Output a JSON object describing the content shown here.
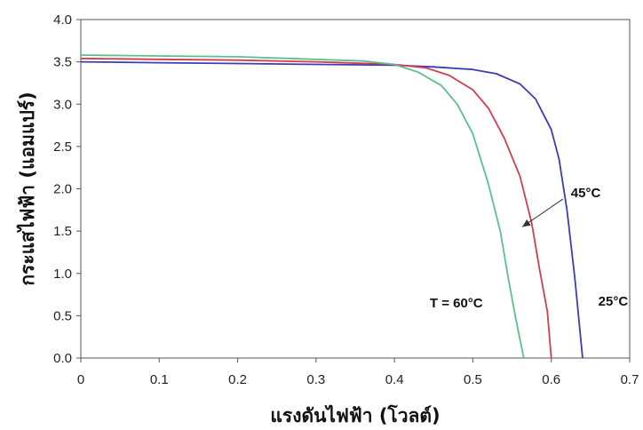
{
  "chart_data": {
    "type": "line",
    "xlabel": "แรงดันไฟฟ้า (โวลต์)",
    "ylabel": "กระแสไฟฟ้า (แอมแปร์)",
    "xlim": [
      0,
      0.7
    ],
    "ylim": [
      0,
      4.0
    ],
    "xticks": [
      "0",
      "0.1",
      "0.2",
      "0.3",
      "0.4",
      "0.5",
      "0.6",
      "0.7"
    ],
    "yticks": [
      "0.0",
      "0.5",
      "1.0",
      "1.5",
      "2.0",
      "2.5",
      "3.0",
      "3.5",
      "4.0"
    ],
    "grid": false,
    "series": [
      {
        "color": "#3c3cb4",
        "points": [
          [
            0,
            3.5
          ],
          [
            0.1,
            3.49
          ],
          [
            0.2,
            3.48
          ],
          [
            0.3,
            3.47
          ],
          [
            0.4,
            3.46
          ],
          [
            0.45,
            3.44
          ],
          [
            0.5,
            3.41
          ],
          [
            0.53,
            3.36
          ],
          [
            0.56,
            3.24
          ],
          [
            0.58,
            3.06
          ],
          [
            0.6,
            2.7
          ],
          [
            0.61,
            2.35
          ],
          [
            0.62,
            1.75
          ],
          [
            0.63,
            0.95
          ],
          [
            0.64,
            0.0
          ]
        ]
      },
      {
        "color": "#d23c50",
        "points": [
          [
            0,
            3.54
          ],
          [
            0.1,
            3.53
          ],
          [
            0.2,
            3.52
          ],
          [
            0.3,
            3.5
          ],
          [
            0.4,
            3.47
          ],
          [
            0.44,
            3.43
          ],
          [
            0.47,
            3.34
          ],
          [
            0.5,
            3.17
          ],
          [
            0.52,
            2.95
          ],
          [
            0.54,
            2.6
          ],
          [
            0.56,
            2.15
          ],
          [
            0.575,
            1.6
          ],
          [
            0.585,
            1.05
          ],
          [
            0.595,
            0.55
          ],
          [
            0.6,
            0.0
          ]
        ]
      },
      {
        "color": "#5cc08c",
        "points": [
          [
            0,
            3.58
          ],
          [
            0.1,
            3.57
          ],
          [
            0.2,
            3.56
          ],
          [
            0.3,
            3.53
          ],
          [
            0.36,
            3.51
          ],
          [
            0.4,
            3.47
          ],
          [
            0.43,
            3.38
          ],
          [
            0.46,
            3.22
          ],
          [
            0.48,
            3.0
          ],
          [
            0.5,
            2.65
          ],
          [
            0.52,
            2.05
          ],
          [
            0.535,
            1.5
          ],
          [
            0.545,
            0.95
          ],
          [
            0.555,
            0.45
          ],
          [
            0.565,
            0.0
          ]
        ]
      }
    ],
    "annotations": [
      {
        "text": "T = 60°C",
        "x": 0.445,
        "y": 0.6
      },
      {
        "text": "45°C",
        "x": 0.625,
        "y": 1.9
      },
      {
        "text": "25°C",
        "x": 0.66,
        "y": 0.62
      }
    ],
    "arrow": {
      "from": [
        0.615,
        1.88
      ],
      "to": [
        0.563,
        1.55
      ]
    }
  }
}
